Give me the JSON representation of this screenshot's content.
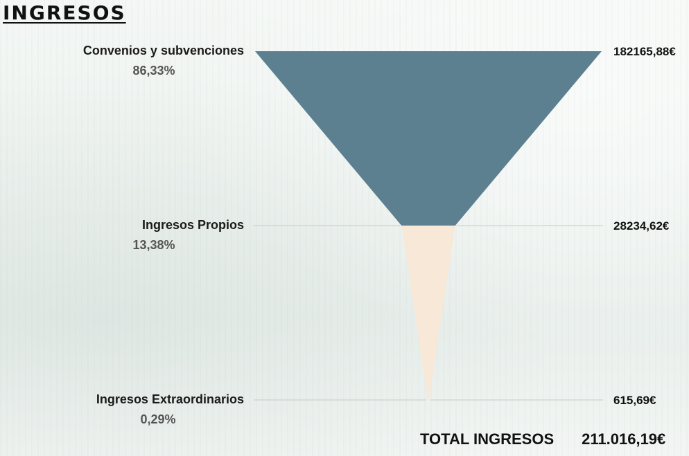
{
  "title": "INGRESOS",
  "chart_data": {
    "type": "funnel",
    "stages": [
      {
        "label": "Convenios y subvenciones",
        "percent_label": "86,33%",
        "value": 182165.88,
        "value_label": "182165,88€",
        "color": "#5c8090"
      },
      {
        "label": "Ingresos Propios",
        "percent_label": "13,38%",
        "value": 28234.62,
        "value_label": "28234,62€",
        "color": "#f7e8d8"
      },
      {
        "label": "Ingresos Extraordinarios",
        "percent_label": "0,29%",
        "value": 615.69,
        "value_label": "615,69€",
        "color": "#f0e6da"
      }
    ]
  },
  "total": {
    "label": "TOTAL INGRESOS",
    "value": "211.016,19€"
  }
}
